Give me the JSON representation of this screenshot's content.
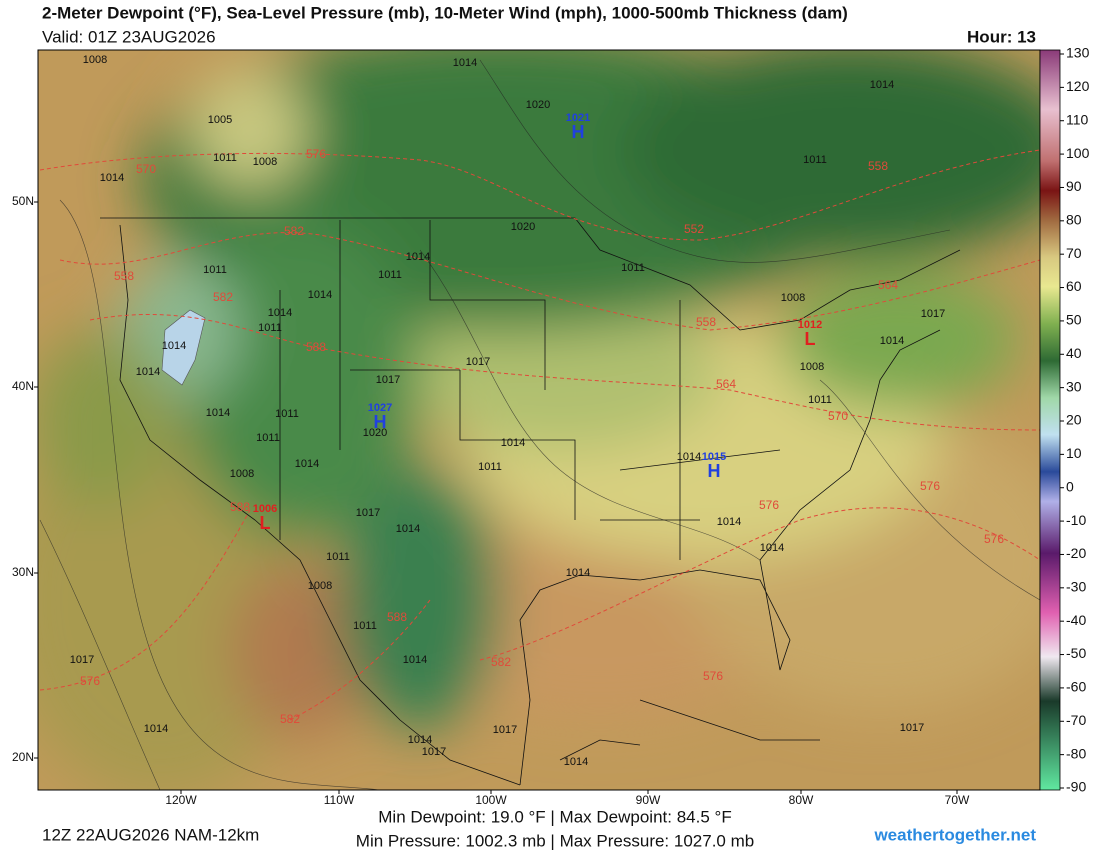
{
  "header": {
    "title": "2-Meter Dewpoint (°F), Sea-Level Pressure (mb), 10-Meter Wind (mph), 1000-500mb Thickness (dam)",
    "valid": "Valid: 01Z 23AUG2026",
    "hour": "Hour: 13"
  },
  "axes": {
    "latitudes": [
      "50N",
      "40N",
      "30N",
      "20N"
    ],
    "longitudes": [
      "120W",
      "110W",
      "100W",
      "90W",
      "80W",
      "70W"
    ]
  },
  "colorbar": {
    "ticks": [
      130,
      120,
      110,
      100,
      90,
      80,
      70,
      60,
      50,
      40,
      30,
      20,
      10,
      0,
      -10,
      -20,
      -30,
      -40,
      -50,
      -60,
      -70,
      -80,
      -90
    ]
  },
  "isobar_labels": [
    "1008",
    "1005",
    "1011",
    "1008",
    "1014",
    "1014",
    "1020",
    "1020",
    "1014",
    "1011",
    "1011",
    "1011",
    "1014",
    "1014",
    "1014",
    "1011",
    "1014",
    "1014",
    "1017",
    "1017",
    "1014",
    "1011",
    "1020",
    "1011",
    "1014",
    "1011",
    "1014",
    "1008",
    "1017",
    "1014",
    "1011",
    "1008",
    "1011",
    "1014",
    "1017",
    "1014",
    "1014",
    "1017",
    "1014",
    "1014",
    "1014",
    "1014",
    "1014",
    "1017",
    "1014",
    "1008",
    "1011",
    "1008",
    "1011",
    "1017",
    "1017"
  ],
  "thickness_labels": [
    "570",
    "576",
    "558",
    "582",
    "582",
    "588",
    "552",
    "558",
    "564",
    "558",
    "564",
    "570",
    "576",
    "576",
    "576",
    "588",
    "588",
    "582",
    "576",
    "576",
    "582"
  ],
  "highs": [
    {
      "symbol": "H",
      "pressure": "1021"
    },
    {
      "symbol": "H",
      "pressure": "1027"
    },
    {
      "symbol": "H",
      "pressure": "1015"
    }
  ],
  "lows": [
    {
      "symbol": "L",
      "pressure": "1012"
    },
    {
      "symbol": "L",
      "pressure": "1006"
    }
  ],
  "footer": {
    "run": "12Z 22AUG2026 NAM-12km",
    "dewpoint_stats": "Min Dewpoint:  19.0 °F | Max Dewpoint:  84.5 °F",
    "pressure_stats": "Min Pressure: 1002.3 mb | Max Pressure: 1027.0 mb",
    "site": "weathertogether.net"
  }
}
